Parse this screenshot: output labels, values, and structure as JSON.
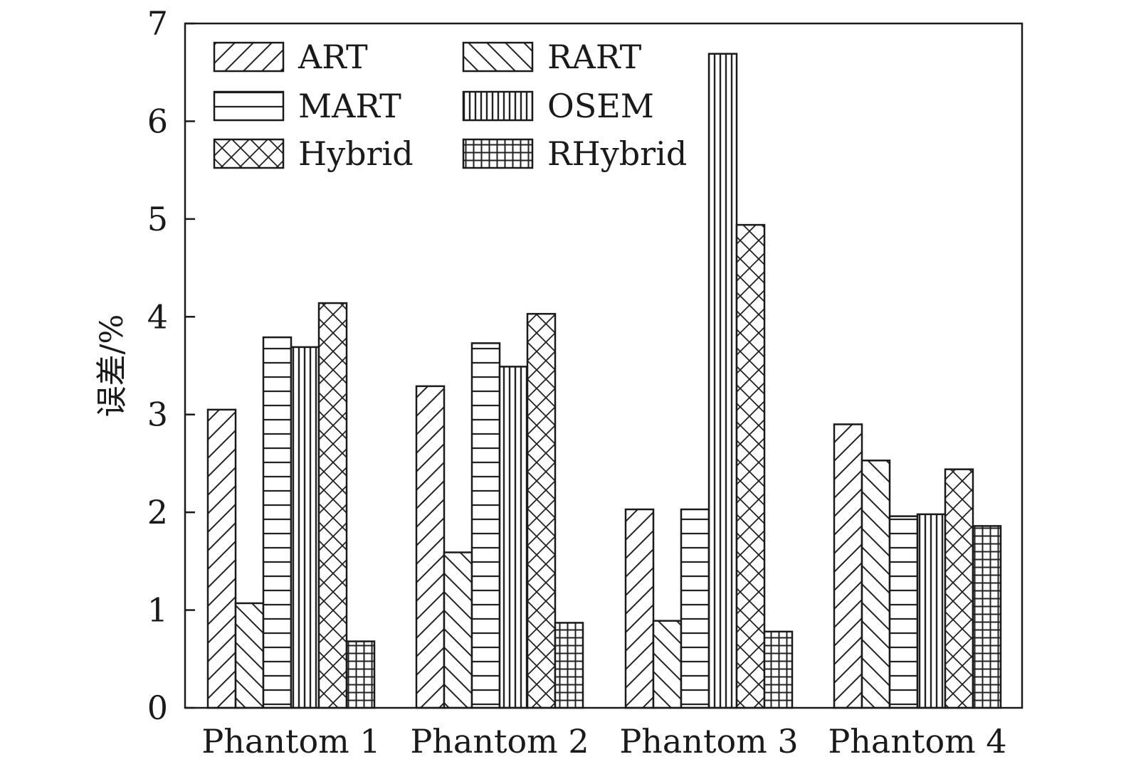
{
  "chart_data": {
    "type": "bar",
    "categories": [
      "Phantom 1",
      "Phantom 2",
      "Phantom 3",
      "Phantom 4"
    ],
    "series": [
      {
        "name": "ART",
        "pattern": "diag-right",
        "values": [
          3.05,
          3.29,
          2.03,
          2.9
        ]
      },
      {
        "name": "RART",
        "pattern": "diag-left",
        "values": [
          1.07,
          1.59,
          0.89,
          2.53
        ]
      },
      {
        "name": "MART",
        "pattern": "horizontal",
        "values": [
          3.79,
          3.73,
          2.03,
          1.96
        ]
      },
      {
        "name": "OSEM",
        "pattern": "vertical",
        "values": [
          3.69,
          3.49,
          6.69,
          1.98
        ]
      },
      {
        "name": "Hybrid",
        "pattern": "crosshatch",
        "values": [
          4.14,
          4.03,
          4.94,
          2.44
        ]
      },
      {
        "name": "RHybrid",
        "pattern": "grid",
        "values": [
          0.68,
          0.87,
          0.78,
          1.86
        ]
      }
    ],
    "title": "",
    "xlabel": "",
    "ylabel": "误差/%",
    "ylim": [
      0,
      7
    ],
    "yticks": [
      0,
      1,
      2,
      3,
      4,
      5,
      6,
      7
    ],
    "grid": false,
    "legend_position": "top-left, two columns"
  }
}
